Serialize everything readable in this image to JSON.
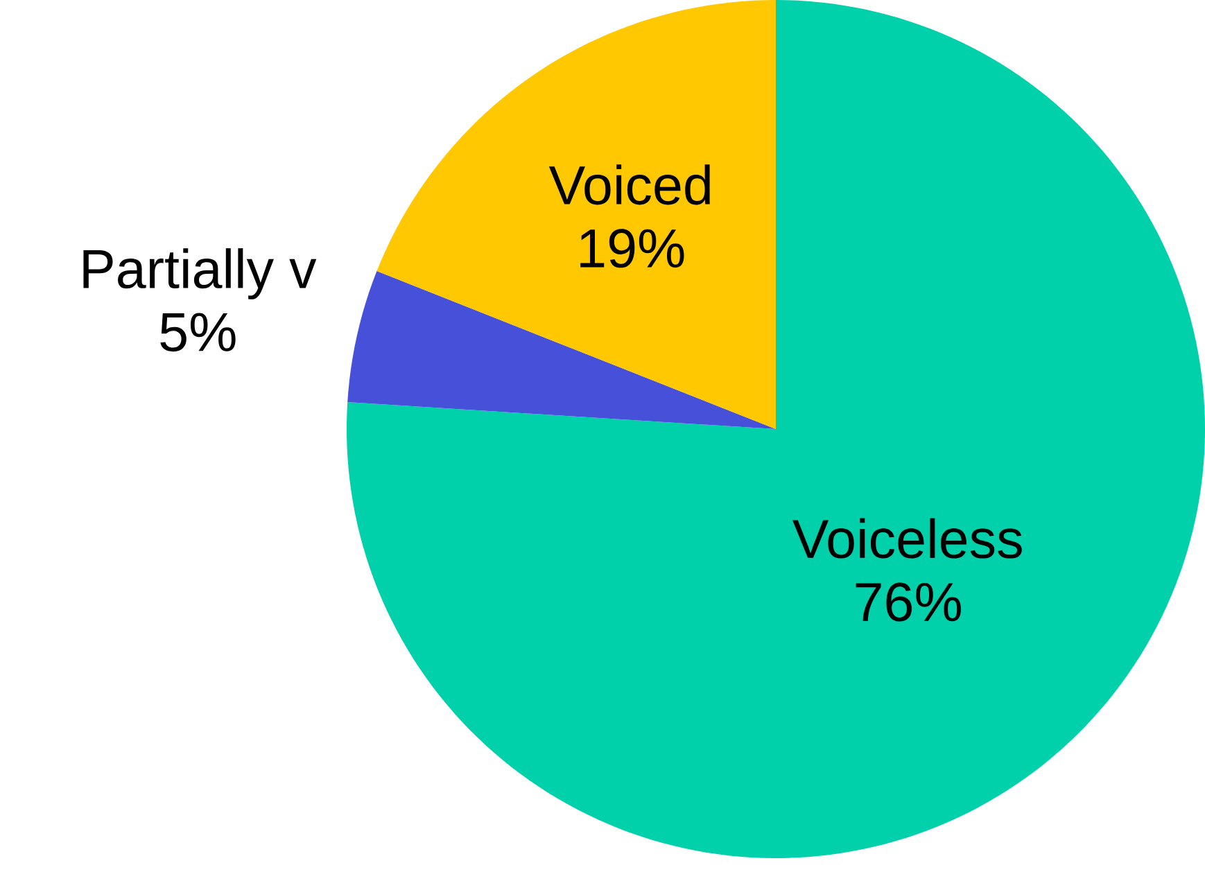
{
  "chart_data": {
    "type": "pie",
    "categories": [
      "Voiceless",
      "Partially v",
      "Voiced"
    ],
    "values": [
      76,
      5,
      19
    ],
    "value_labels": [
      "76%",
      "5%",
      "19%"
    ],
    "colors": [
      "#00d1ab",
      "#4650d8",
      "#ffc800"
    ]
  }
}
